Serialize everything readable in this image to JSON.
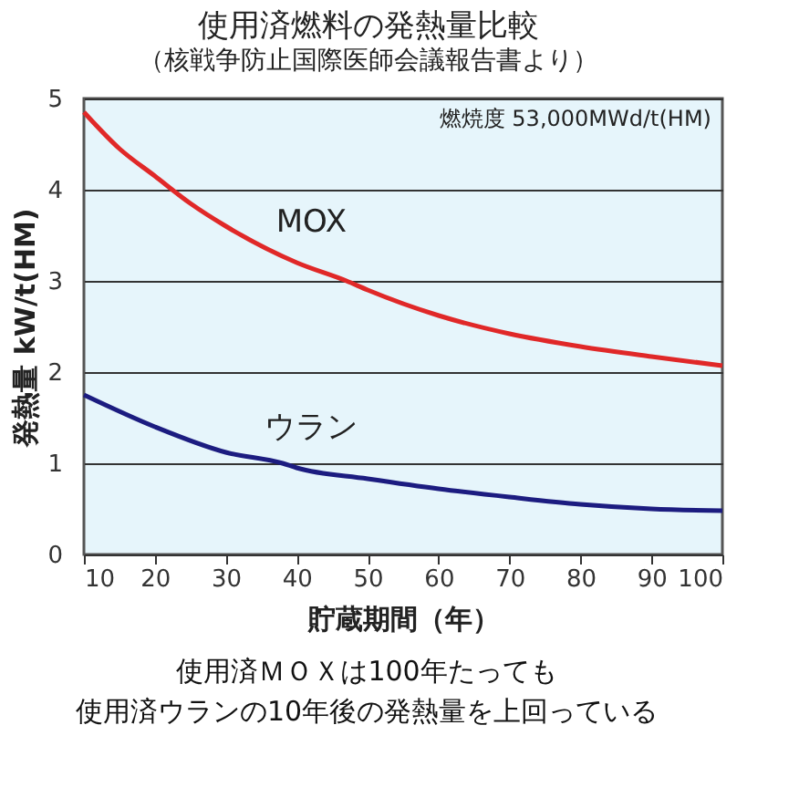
{
  "chart_data": {
    "type": "line",
    "title": "使用済燃料の発熱量比較",
    "subtitle": "（核戦争防止国際医師会議報告書より）",
    "xlabel": "貯蔵期間（年）",
    "ylabel": "発熱量 kW/t(HM)",
    "xlim": [
      10,
      100
    ],
    "xticks": [
      10,
      20,
      30,
      40,
      50,
      60,
      70,
      80,
      90,
      100
    ],
    "ylim": [
      0,
      5
    ],
    "yticks": [
      0,
      1,
      2,
      3,
      4,
      5
    ],
    "grid": "y",
    "legend": false,
    "marker": "none",
    "line_style": "solid",
    "series": [
      {
        "name": "MOX",
        "color": "#e02828",
        "x": [
          10,
          15,
          20,
          25,
          30,
          40,
          47,
          50,
          60,
          70,
          80,
          90,
          100
        ],
        "values": [
          4.85,
          4.45,
          4.15,
          3.85,
          3.6,
          3.2,
          3.0,
          2.9,
          2.62,
          2.42,
          2.28,
          2.17,
          2.07
        ]
      },
      {
        "name": "ウラン",
        "color": "#1c1c80",
        "x": [
          10,
          20,
          30,
          38,
          40,
          50,
          60,
          70,
          80,
          90,
          100
        ],
        "values": [
          1.75,
          1.4,
          1.12,
          1.0,
          0.95,
          0.83,
          0.72,
          0.63,
          0.55,
          0.5,
          0.48
        ]
      }
    ],
    "annotations": [
      "燃焼度 53,000MWd/t(HM)",
      "使用済ＭＯＸは100年たっても",
      "使用済ウランの10年後の発熱量を上回っている"
    ]
  }
}
